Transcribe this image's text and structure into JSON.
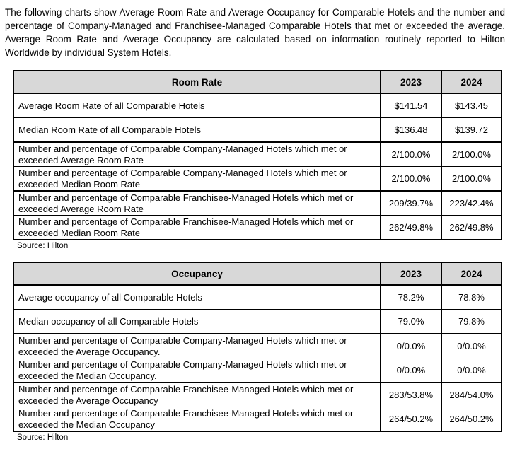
{
  "intro": "The following charts show Average Room Rate and Average Occupancy for Comparable Hotels and the number and percentage of Company-Managed and Franchisee-Managed Comparable Hotels that met or exceeded the average. Average Room Rate and Average Occupancy are calculated based on information routinely reported to Hilton Worldwide by individual System Hotels.",
  "colors": {
    "header_background": "#d8d8d8",
    "border": "#000000",
    "text": "#000000"
  },
  "tables": [
    {
      "title": "Room Rate",
      "year1": "2023",
      "year2": "2024",
      "source": "Source: Hilton",
      "rows": [
        {
          "label": "Average Room Rate of all Comparable Hotels",
          "y2023": "$141.54",
          "y2024": "$143.45"
        },
        {
          "label": "Median Room Rate of all Comparable Hotels",
          "y2023": "$136.48",
          "y2024": "$139.72"
        },
        {
          "label": "Number and percentage of Comparable Company-Managed Hotels which met or exceeded Average Room Rate",
          "y2023": "2/100.0%",
          "y2024": "2/100.0%"
        },
        {
          "label": "Number and percentage of Comparable Company-Managed Hotels which met or exceeded Median Room Rate",
          "y2023": "2/100.0%",
          "y2024": "2/100.0%"
        },
        {
          "label": "Number and percentage of Comparable Franchisee-Managed Hotels which met or exceeded Average Room Rate",
          "y2023": "209/39.7%",
          "y2024": "223/42.4%"
        },
        {
          "label": "Number and percentage of Comparable Franchisee-Managed Hotels which met or exceeded Median Room Rate",
          "y2023": "262/49.8%",
          "y2024": "262/49.8%"
        }
      ]
    },
    {
      "title": "Occupancy",
      "year1": "2023",
      "year2": "2024",
      "source": "Source: Hilton",
      "rows": [
        {
          "label": "Average occupancy of all Comparable Hotels",
          "y2023": "78.2%",
          "y2024": "78.8%"
        },
        {
          "label": "Median occupancy of all Comparable Hotels",
          "y2023": "79.0%",
          "y2024": "79.8%"
        },
        {
          "label": "Number and percentage of Comparable Company-Managed Hotels which met or exceeded the Average Occupancy.",
          "y2023": "0/0.0%",
          "y2024": "0/0.0%"
        },
        {
          "label": "Number and percentage of Comparable Company-Managed Hotels which met or exceeded the Median Occupancy.",
          "y2023": "0/0.0%",
          "y2024": "0/0.0%"
        },
        {
          "label": "Number and percentage of Comparable Franchisee-Managed Hotels which met or exceeded the Average Occupancy",
          "y2023": "283/53.8%",
          "y2024": "284/54.0%"
        },
        {
          "label": "Number and percentage of Comparable Franchisee-Managed Hotels which met or exceeded the Median Occupancy",
          "y2023": "264/50.2%",
          "y2024": "264/50.2%"
        }
      ]
    }
  ]
}
